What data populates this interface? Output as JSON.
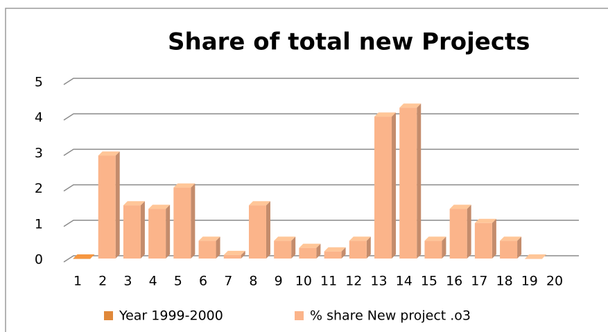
{
  "chart_data": {
    "type": "bar3d",
    "title": "Share of total new Projects",
    "categories": [
      "1",
      "2",
      "3",
      "4",
      "5",
      "6",
      "7",
      "8",
      "9",
      "10",
      "11",
      "12",
      "13",
      "14",
      "15",
      "16",
      "17",
      "18",
      "19",
      "20"
    ],
    "series": [
      {
        "name": "Year 1999-2000",
        "color": "#e0883a",
        "values": [
          0,
          null,
          null,
          null,
          null,
          null,
          null,
          null,
          null,
          null,
          null,
          null,
          null,
          null,
          null,
          null,
          null,
          null,
          null,
          null
        ]
      },
      {
        "name": "% share New project .o3",
        "color": "#fbb48a",
        "values": [
          null,
          2.9,
          1.5,
          1.4,
          2.0,
          0.5,
          0.1,
          1.5,
          0.5,
          0.3,
          0.2,
          0.5,
          4.0,
          4.25,
          0.5,
          1.4,
          1.0,
          0.5,
          0,
          null
        ]
      }
    ],
    "ylim": [
      0,
      5
    ],
    "yticks": [
      0,
      1,
      2,
      3,
      4,
      5
    ],
    "grid": true,
    "legend": "bottom"
  }
}
